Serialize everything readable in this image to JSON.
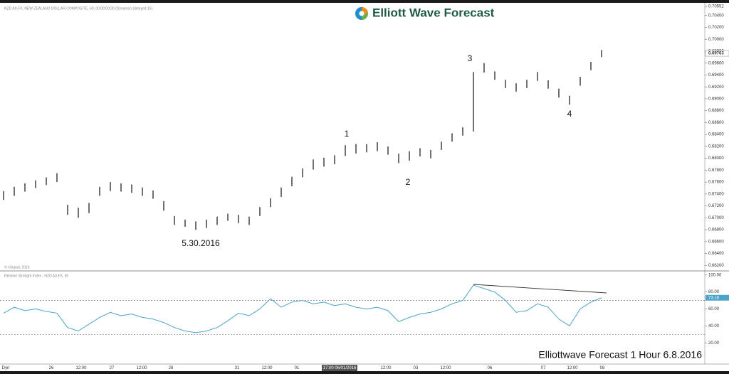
{
  "chart_data": {
    "type": "ohlc",
    "header": "NZD A0-FX, NEW ZEALAND DOLLAR COMPOSITE, 60, 00:00:00:00 (Dynamic) (delayed 15)",
    "logo": "Elliott Wave Forecast",
    "copyright": "© eSignal, 2016",
    "caption": "Elliottwave Forecast 1 Hour 6.8.2016",
    "price": {
      "color": "#111111",
      "ylim": [
        0.6612,
        0.706
      ],
      "yticks": [
        0.70552,
        {
          "value": 0.704,
          "label": "0.70400"
        },
        {
          "value": 0.702,
          "label": "0.70200"
        },
        {
          "value": 0.7,
          "label": "0.70000"
        },
        {
          "value": 0.698,
          "label": "0.69800"
        },
        {
          "value": 0.696,
          "label": "0.69600"
        },
        {
          "value": 0.694,
          "label": "0.69400"
        },
        {
          "value": 0.692,
          "label": "0.69200"
        },
        {
          "value": 0.69,
          "label": "0.69000"
        },
        {
          "value": 0.688,
          "label": "0.68800"
        },
        {
          "value": 0.686,
          "label": "0.68600"
        },
        {
          "value": 0.684,
          "label": "0.68400"
        },
        {
          "value": 0.682,
          "label": "0.68200"
        },
        {
          "value": 0.68,
          "label": "0.68000"
        },
        {
          "value": 0.678,
          "label": "0.67800"
        },
        {
          "value": 0.676,
          "label": "0.67600"
        },
        {
          "value": 0.674,
          "label": "0.67400"
        },
        {
          "value": 0.672,
          "label": "0.67200"
        },
        {
          "value": 0.67,
          "label": "0.67000"
        },
        {
          "value": 0.668,
          "label": "0.66800"
        },
        {
          "value": 0.666,
          "label": "0.66600"
        },
        {
          "value": 0.664,
          "label": "0.66400"
        },
        {
          "value": 0.662,
          "label": "0.66200"
        }
      ],
      "high": [
        0.6745,
        0.6752,
        0.6758,
        0.6763,
        0.6768,
        0.6775,
        0.6722,
        0.6717,
        0.6725,
        0.6752,
        0.676,
        0.6758,
        0.6756,
        0.6751,
        0.6746,
        0.6728,
        0.6703,
        0.6697,
        0.6694,
        0.6697,
        0.6702,
        0.6707,
        0.6705,
        0.6702,
        0.6718,
        0.6733,
        0.6751,
        0.6769,
        0.6783,
        0.6798,
        0.6801,
        0.6805,
        0.6822,
        0.6824,
        0.6824,
        0.6827,
        0.682,
        0.6808,
        0.6812,
        0.6817,
        0.6814,
        0.6828,
        0.6842,
        0.6852,
        0.6945,
        0.696,
        0.6946,
        0.6932,
        0.6926,
        0.6932,
        0.6945,
        0.6931,
        0.6917,
        0.6905,
        0.6937,
        0.6962,
        0.6982
      ],
      "low": [
        0.673,
        0.6737,
        0.6744,
        0.675,
        0.6755,
        0.676,
        0.6705,
        0.67,
        0.6708,
        0.6737,
        0.6745,
        0.6744,
        0.6742,
        0.6737,
        0.6732,
        0.6712,
        0.6688,
        0.6685,
        0.668,
        0.6683,
        0.6688,
        0.6695,
        0.6691,
        0.6688,
        0.6703,
        0.6718,
        0.6735,
        0.6753,
        0.6768,
        0.6781,
        0.6786,
        0.679,
        0.6804,
        0.6808,
        0.681,
        0.6812,
        0.6806,
        0.6792,
        0.6796,
        0.6803,
        0.68,
        0.6814,
        0.6828,
        0.6838,
        0.6845,
        0.6944,
        0.6932,
        0.6918,
        0.6912,
        0.6918,
        0.693,
        0.6917,
        0.6902,
        0.689,
        0.6922,
        0.6948,
        0.697
      ],
      "last": 0.69763
    },
    "rsi": {
      "title": "Relative Strength Index - NZD A0-FX, 60",
      "color": "#4aa3c8",
      "ylim": [
        -5,
        104
      ],
      "yticks": [
        {
          "value": 100,
          "label": "100.00"
        },
        {
          "value": 80,
          "label": "80.00"
        },
        {
          "value": 60,
          "label": "60.00"
        },
        {
          "value": 40,
          "label": "40.00"
        },
        {
          "value": 20,
          "label": "20.00"
        }
      ],
      "levels": [
        70,
        30
      ],
      "values": [
        55,
        62,
        58,
        60,
        57,
        55,
        38,
        34,
        42,
        50,
        56,
        52,
        54,
        50,
        48,
        44,
        38,
        34,
        32,
        34,
        38,
        46,
        55,
        52,
        60,
        72,
        62,
        68,
        70,
        66,
        68,
        64,
        66,
        62,
        60,
        62,
        58,
        45,
        50,
        54,
        56,
        60,
        66,
        70,
        88,
        84,
        80,
        70,
        56,
        58,
        66,
        62,
        48,
        40,
        60,
        68,
        73.18
      ],
      "last": 73.18
    },
    "annotations": [
      "1",
      "2",
      "3",
      "4",
      "5.30.2016"
    ],
    "x_labels": [
      "Dyn",
      "26",
      "12:00",
      "27",
      "12:00",
      "28",
      "31",
      "12:00",
      "01",
      "17:00 06/01/2016",
      "12:00",
      "03",
      "12:00",
      "06",
      "07",
      "12:00",
      "08"
    ]
  }
}
